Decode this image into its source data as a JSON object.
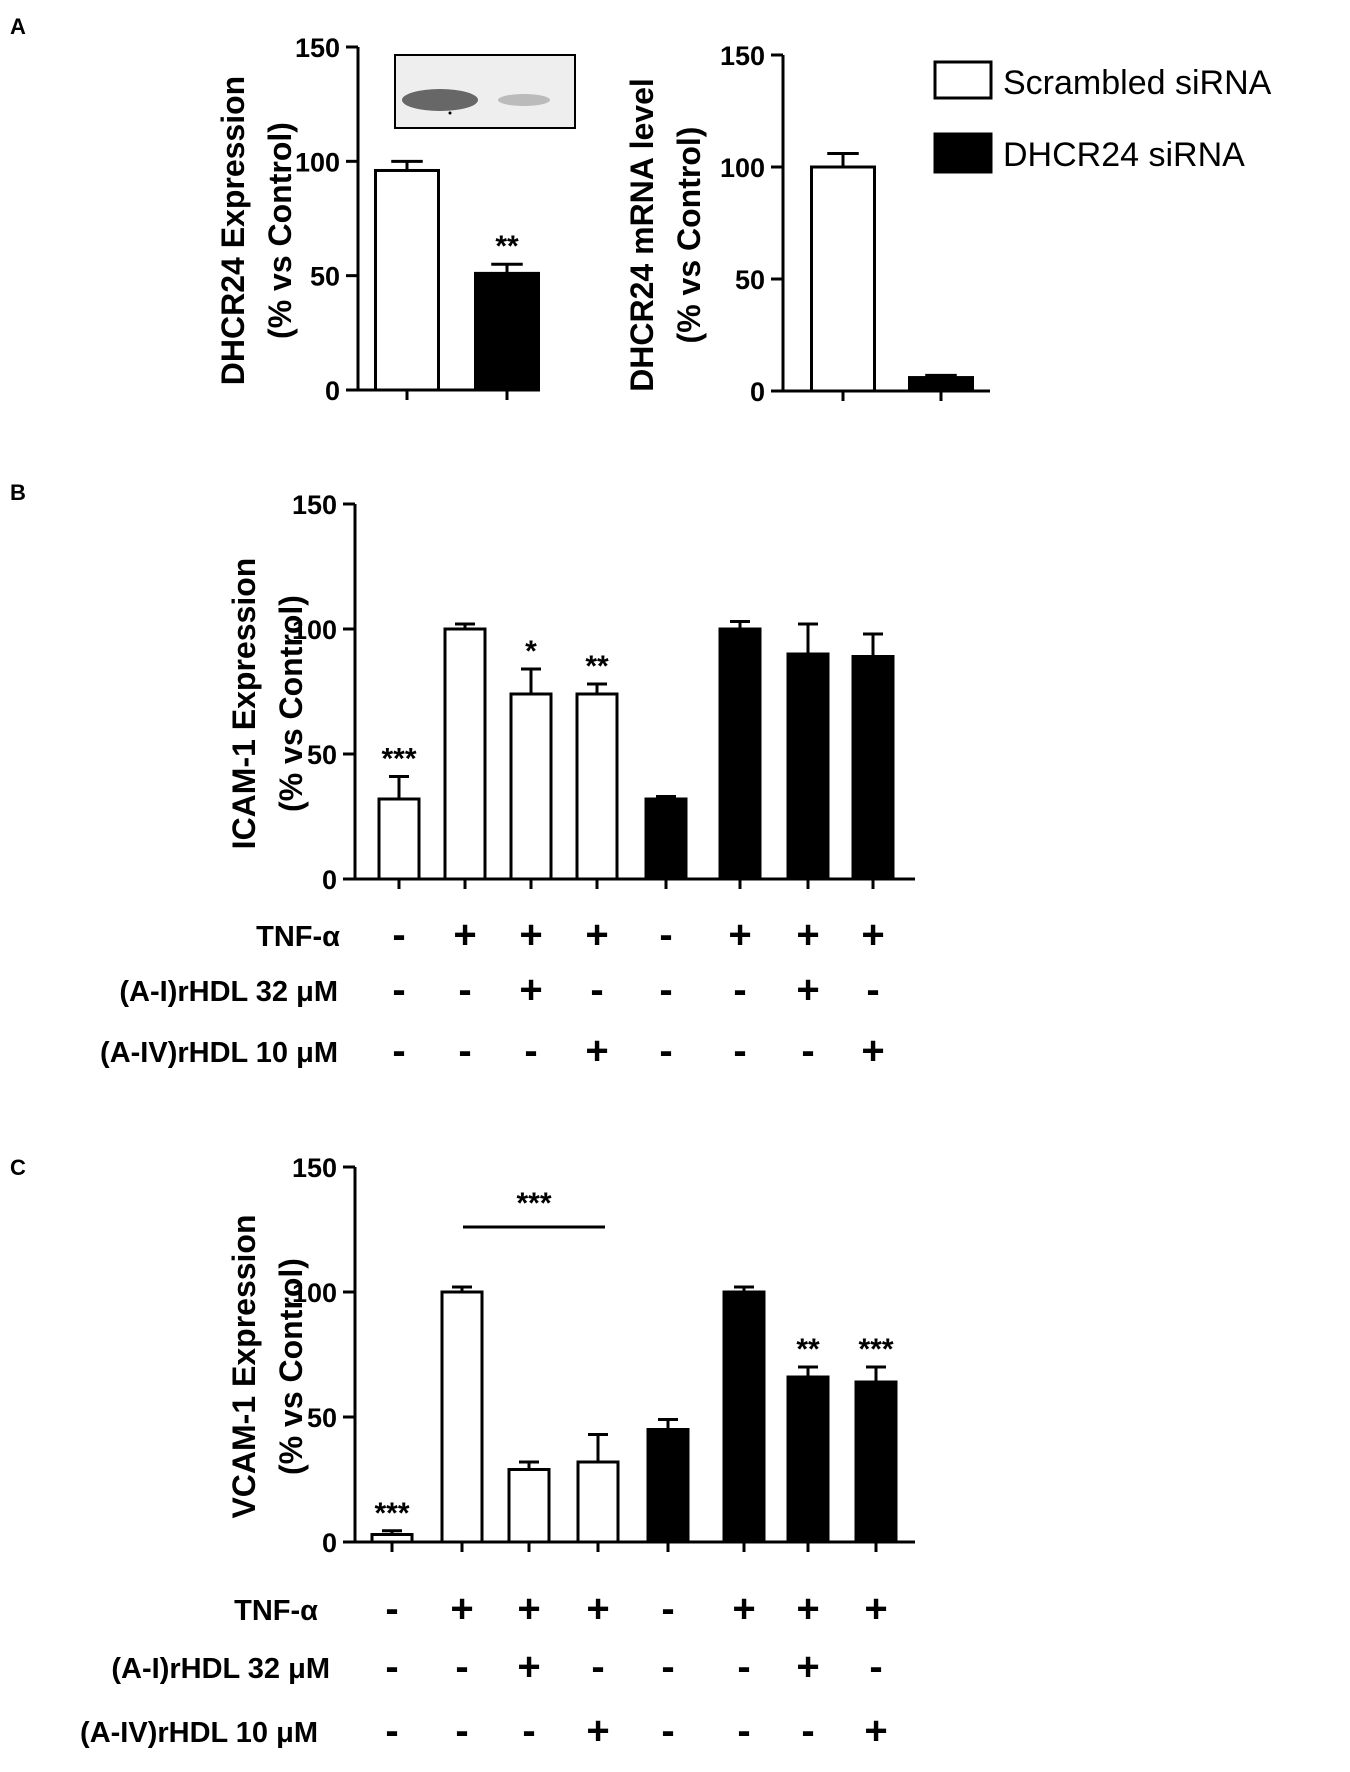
{
  "legend": {
    "entries": [
      {
        "label": "Scrambled siRNA",
        "fill": "#ffffff"
      },
      {
        "label": "DHCR24 siRNA",
        "fill": "#000000"
      }
    ]
  },
  "conditions": {
    "rows": [
      {
        "label": "TNF-α",
        "signs": [
          "-",
          "+",
          "+",
          "+",
          "-",
          "+",
          "+",
          "+"
        ]
      },
      {
        "label": "(A-I)rHDL 32 μM",
        "signs": [
          "-",
          "-",
          "+",
          "-",
          "-",
          "-",
          "+",
          "-"
        ]
      },
      {
        "label": "(A-IV)rHDL 10 μM",
        "signs": [
          "-",
          "-",
          "-",
          "+",
          "-",
          "-",
          "-",
          "+"
        ]
      }
    ]
  },
  "chart_data": [
    {
      "panel": "A",
      "type": "bar",
      "ylabel_line1": "DHCR24 Expression",
      "ylabel_line2": "(% vs Control)",
      "ylim": [
        0,
        150
      ],
      "yticks": [
        0,
        50,
        100,
        150
      ],
      "series": [
        "Scrambled siRNA",
        "DHCR24 siRNA"
      ],
      "values": [
        96,
        51
      ],
      "errors": [
        4,
        4
      ],
      "fills": [
        "#ffffff",
        "#000000"
      ],
      "significance": [
        "",
        "**"
      ],
      "has_blot_inset": true
    },
    {
      "panel": "",
      "type": "bar",
      "ylabel_line1": "DHCR24 mRNA level",
      "ylabel_line2": "(% vs Control)",
      "ylim": [
        0,
        150
      ],
      "yticks": [
        0,
        50,
        100,
        150
      ],
      "series": [
        "Scrambled siRNA",
        "DHCR24 siRNA"
      ],
      "values": [
        100,
        6
      ],
      "errors": [
        6,
        1
      ],
      "fills": [
        "#ffffff",
        "#000000"
      ],
      "significance": [
        "",
        ""
      ]
    },
    {
      "panel": "B",
      "type": "bar",
      "ylabel_line1": "ICAM-1 Expression",
      "ylabel_line2": "(% vs Control)",
      "ylim": [
        0,
        150
      ],
      "yticks": [
        0,
        50,
        100,
        150
      ],
      "values": [
        32,
        100,
        74,
        74,
        32,
        100,
        90,
        89
      ],
      "errors": [
        9,
        2,
        10,
        4,
        1,
        3,
        12,
        9
      ],
      "fills": [
        "#ffffff",
        "#ffffff",
        "#ffffff",
        "#ffffff",
        "#000000",
        "#000000",
        "#000000",
        "#000000"
      ],
      "significance": [
        "***",
        "",
        "*",
        "**",
        "",
        "",
        "",
        ""
      ]
    },
    {
      "panel": "C",
      "type": "bar",
      "ylabel_line1": "VCAM-1 Expression",
      "ylabel_line2": "(% vs Control)",
      "ylim": [
        0,
        150
      ],
      "yticks": [
        0,
        50,
        100,
        150
      ],
      "values": [
        3,
        100,
        29,
        32,
        45,
        100,
        66,
        64
      ],
      "errors": [
        1.5,
        2,
        3,
        11,
        4,
        2,
        4,
        6
      ],
      "fills": [
        "#ffffff",
        "#ffffff",
        "#ffffff",
        "#ffffff",
        "#000000",
        "#000000",
        "#000000",
        "#000000"
      ],
      "significance": [
        "***",
        "",
        "",
        "",
        "",
        "",
        "**",
        "***"
      ],
      "bracket": {
        "from": 1,
        "to": 3,
        "label": "***"
      }
    }
  ]
}
